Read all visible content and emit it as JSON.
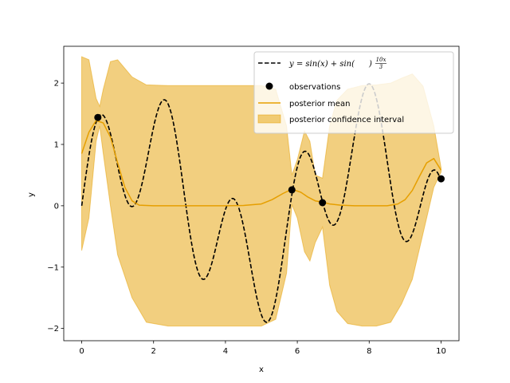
{
  "chart_data": {
    "type": "line",
    "title": "",
    "xlabel": "x",
    "ylabel": "y",
    "xlim": [
      -0.5,
      10.5
    ],
    "ylim": [
      -2.2,
      2.6
    ],
    "xticks": [
      0,
      2,
      4,
      6,
      8,
      10
    ],
    "yticks": [
      -2,
      -1,
      0,
      1,
      2
    ],
    "xtick_labels": [
      "0",
      "2",
      "4",
      "6",
      "8",
      "10"
    ],
    "ytick_labels": [
      "−2",
      "−1",
      "0",
      "1",
      "2"
    ],
    "grid": false,
    "legend_position": "top-right",
    "true_function": {
      "name": "y = sin(x) + sin(10x/3)",
      "name_parts": {
        "lhs": "y = sin(x) + sin(",
        "num": "10x",
        "den": "3",
        "rhs": ")"
      },
      "color": "#000000",
      "style": "dashed",
      "x_range": [
        0,
        10
      ]
    },
    "observations": {
      "name": "observations",
      "color": "#000000",
      "x": [
        0.45,
        5.85,
        6.7,
        10.0
      ],
      "y": [
        1.44,
        0.26,
        0.05,
        0.44
      ]
    },
    "posterior_mean": {
      "name": "posterior mean",
      "color": "#e69f00",
      "x": [
        0,
        0.2,
        0.4,
        0.6,
        0.8,
        1.0,
        1.2,
        1.4,
        1.6,
        2.0,
        3.0,
        4.0,
        4.5,
        5.0,
        5.3,
        5.6,
        5.85,
        6.1,
        6.3,
        6.5,
        6.7,
        6.9,
        7.2,
        7.6,
        8.0,
        8.5,
        8.8,
        9.0,
        9.2,
        9.4,
        9.6,
        9.8,
        10.0
      ],
      "y": [
        0.85,
        1.2,
        1.39,
        1.35,
        1.12,
        0.7,
        0.3,
        0.08,
        0.01,
        0.0,
        0.0,
        0.0,
        0.005,
        0.03,
        0.1,
        0.2,
        0.27,
        0.22,
        0.14,
        0.08,
        0.06,
        0.03,
        0.01,
        0.0,
        0.0,
        0.0,
        0.03,
        0.1,
        0.25,
        0.48,
        0.7,
        0.77,
        0.58
      ]
    },
    "confidence_interval": {
      "name": "posterior confidence interval",
      "color": "#e69f00",
      "x": [
        0,
        0.2,
        0.4,
        0.5,
        0.6,
        0.8,
        1.0,
        1.4,
        1.8,
        2.4,
        3.0,
        4.0,
        5.0,
        5.4,
        5.7,
        5.85,
        6.0,
        6.2,
        6.35,
        6.5,
        6.7,
        6.9,
        7.1,
        7.4,
        7.8,
        8.2,
        8.6,
        8.9,
        9.2,
        9.5,
        9.8,
        10.0
      ],
      "upper": [
        2.43,
        2.38,
        1.75,
        1.62,
        1.9,
        2.35,
        2.38,
        2.1,
        1.97,
        1.96,
        1.96,
        1.96,
        1.96,
        1.9,
        1.3,
        0.5,
        0.75,
        1.22,
        1.05,
        0.5,
        0.45,
        1.3,
        1.72,
        1.9,
        1.96,
        1.97,
        2.0,
        2.08,
        2.15,
        1.95,
        1.3,
        0.62
      ],
      "lower": [
        -0.73,
        -0.2,
        1.05,
        1.3,
        0.85,
        0.0,
        -0.8,
        -1.5,
        -1.9,
        -1.96,
        -1.96,
        -1.96,
        -1.96,
        -1.85,
        -1.1,
        0.02,
        -0.2,
        -0.75,
        -0.9,
        -0.6,
        -0.35,
        -1.3,
        -1.72,
        -1.92,
        -1.96,
        -1.96,
        -1.9,
        -1.6,
        -1.2,
        -0.45,
        0.3,
        0.55
      ]
    }
  }
}
